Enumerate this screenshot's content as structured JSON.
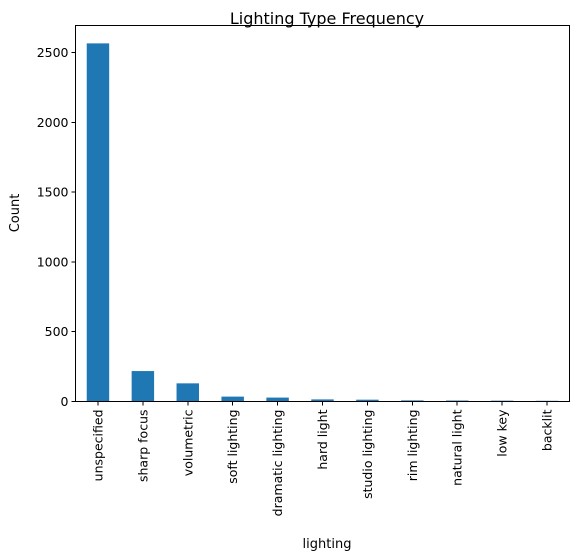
{
  "chart_data": {
    "type": "bar",
    "title": "Lighting Type Frequency",
    "xlabel": "lighting",
    "ylabel": "Count",
    "categories": [
      "unspecified",
      "sharp focus",
      "volumetric",
      "soft lighting",
      "dramatic lighting",
      "hard light",
      "studio lighting",
      "rim lighting",
      "natural light",
      "low key",
      "backlit"
    ],
    "values": [
      2565,
      218,
      130,
      35,
      28,
      15,
      13,
      8,
      7,
      6,
      5
    ],
    "yticks": [
      0,
      500,
      1000,
      1500,
      2000,
      2500
    ],
    "ylim": [
      0,
      2693
    ],
    "bar_color": "#1f77b4",
    "grid": false,
    "legend": "none"
  }
}
